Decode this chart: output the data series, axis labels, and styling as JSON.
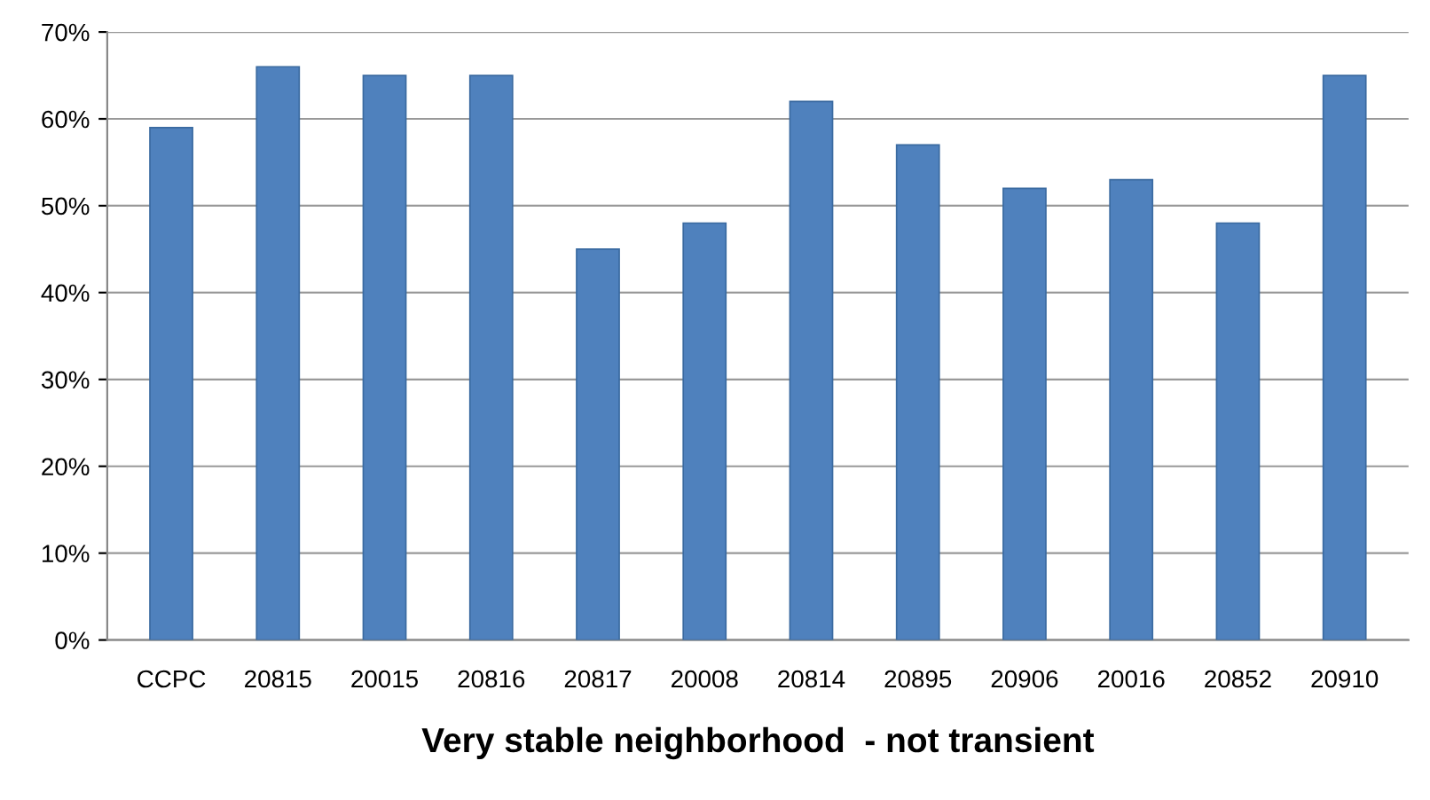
{
  "chart_data": {
    "type": "bar",
    "xlabel": "Very stable neighborhood  - not transient",
    "categories": [
      "CCPC",
      "20815",
      "20015",
      "20816",
      "20817",
      "20008",
      "20814",
      "20895",
      "20906",
      "20016",
      "20852",
      "20910"
    ],
    "values": [
      59,
      66,
      65,
      65,
      45,
      48,
      62,
      57,
      52,
      53,
      48,
      65
    ],
    "color": "#4f81bd",
    "ylim": [
      0,
      70
    ],
    "yticks": [
      {
        "value": 0,
        "label": "0%"
      },
      {
        "value": 10,
        "label": "10%"
      },
      {
        "value": 20,
        "label": "20%"
      },
      {
        "value": 30,
        "label": "30%"
      },
      {
        "value": 40,
        "label": "40%"
      },
      {
        "value": 50,
        "label": "50%"
      },
      {
        "value": 60,
        "label": "60%"
      },
      {
        "value": 70,
        "label": "70%"
      }
    ],
    "grid": "y",
    "legend": false
  }
}
